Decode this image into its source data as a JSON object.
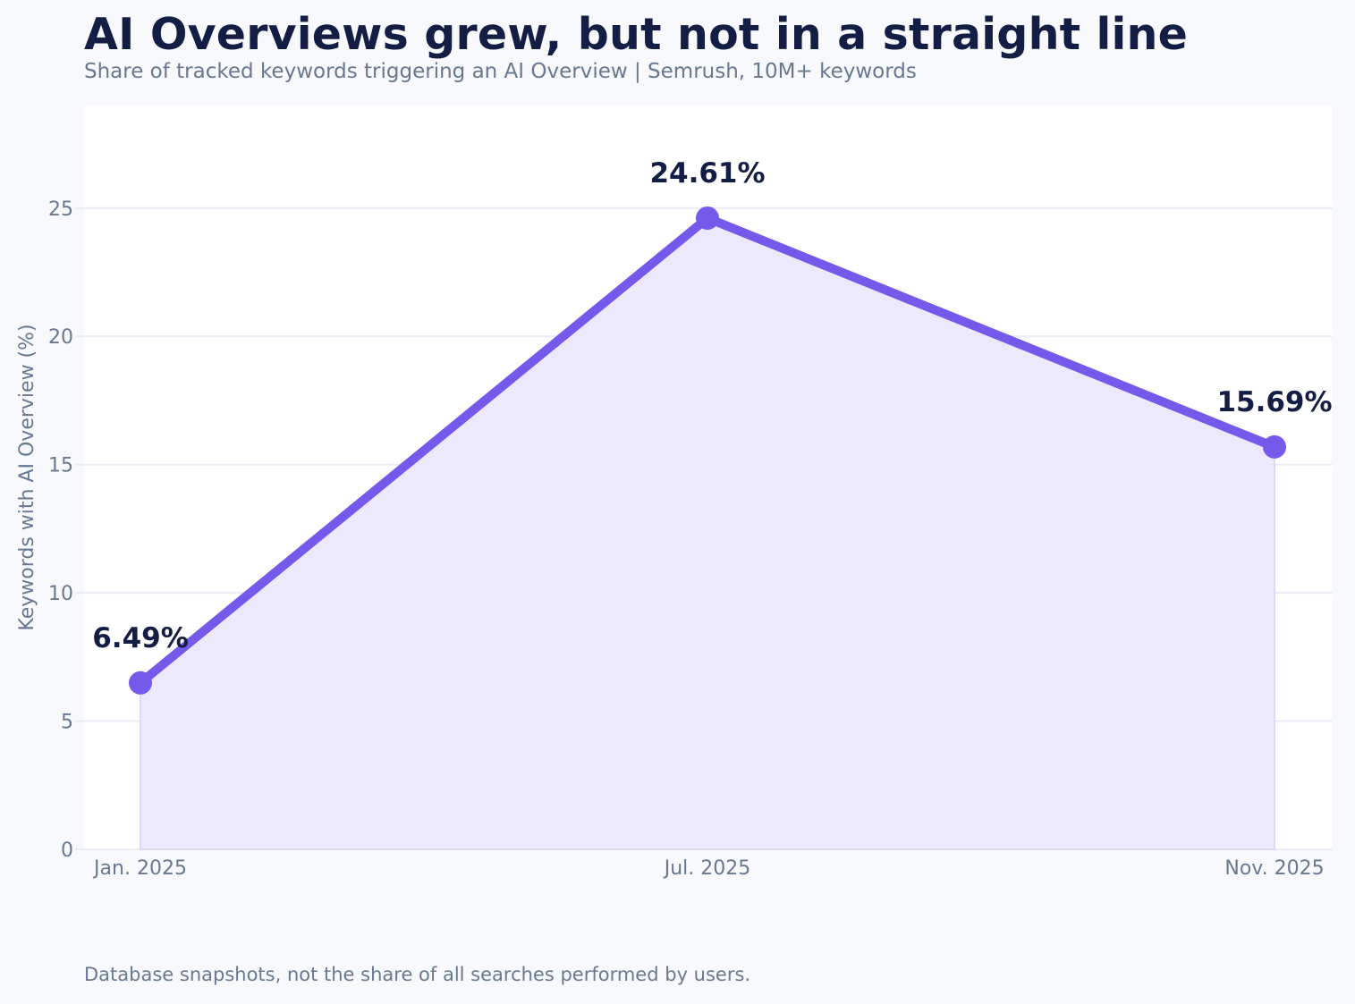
{
  "header": {
    "title": "AI Overviews grew, but not in a straight line",
    "subtitle": "Share of tracked keywords triggering an AI Overview | Semrush, 10M+ keywords"
  },
  "footer": {
    "note": "Database snapshots, not the share of all searches performed by users."
  },
  "chart_data": {
    "type": "line",
    "title": "AI Overviews grew, but not in a straight line",
    "subtitle": "Share of tracked keywords triggering an AI Overview | Semrush, 10M+ keywords",
    "xlabel": "",
    "ylabel": "Keywords with AI Overview (%)",
    "categories": [
      "Jan. 2025",
      "Jul. 2025",
      "Nov. 2025"
    ],
    "values": [
      6.49,
      24.61,
      15.69
    ],
    "data_labels": [
      "6.49%",
      "24.61%",
      "15.69%"
    ],
    "ylim": [
      0,
      29
    ],
    "yticks": [
      0,
      5,
      10,
      15,
      20,
      25
    ],
    "grid": "horizontal",
    "area_fill": true,
    "colors": {
      "line": "#7559ea",
      "fill": "#ece8fc",
      "plot_background": "#ffffff",
      "page_background": "#f7f9fd",
      "grid": "#e9ecf5",
      "label": "#141e44",
      "axis_text": "#687891"
    }
  }
}
